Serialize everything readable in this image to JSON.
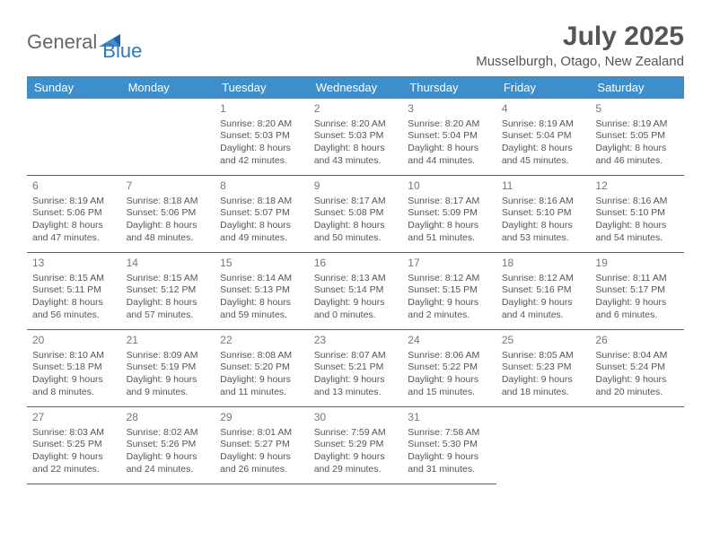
{
  "logo": {
    "word1": "General",
    "word2": "Blue"
  },
  "title": "July 2025",
  "location": "Musselburgh, Otago, New Zealand",
  "colors": {
    "header_bg": "#3f8ecc",
    "header_text": "#ffffff",
    "rule": "#2c6aa0",
    "text": "#555555",
    "logo_blue": "#2f78bf"
  },
  "dow": [
    "Sunday",
    "Monday",
    "Tuesday",
    "Wednesday",
    "Thursday",
    "Friday",
    "Saturday"
  ],
  "lead_blanks": 2,
  "trail_blanks": 2,
  "days": [
    {
      "n": 1,
      "sunrise": "8:20 AM",
      "sunset": "5:03 PM",
      "dl_h": 8,
      "dl_m": 42
    },
    {
      "n": 2,
      "sunrise": "8:20 AM",
      "sunset": "5:03 PM",
      "dl_h": 8,
      "dl_m": 43
    },
    {
      "n": 3,
      "sunrise": "8:20 AM",
      "sunset": "5:04 PM",
      "dl_h": 8,
      "dl_m": 44
    },
    {
      "n": 4,
      "sunrise": "8:19 AM",
      "sunset": "5:04 PM",
      "dl_h": 8,
      "dl_m": 45
    },
    {
      "n": 5,
      "sunrise": "8:19 AM",
      "sunset": "5:05 PM",
      "dl_h": 8,
      "dl_m": 46
    },
    {
      "n": 6,
      "sunrise": "8:19 AM",
      "sunset": "5:06 PM",
      "dl_h": 8,
      "dl_m": 47
    },
    {
      "n": 7,
      "sunrise": "8:18 AM",
      "sunset": "5:06 PM",
      "dl_h": 8,
      "dl_m": 48
    },
    {
      "n": 8,
      "sunrise": "8:18 AM",
      "sunset": "5:07 PM",
      "dl_h": 8,
      "dl_m": 49
    },
    {
      "n": 9,
      "sunrise": "8:17 AM",
      "sunset": "5:08 PM",
      "dl_h": 8,
      "dl_m": 50
    },
    {
      "n": 10,
      "sunrise": "8:17 AM",
      "sunset": "5:09 PM",
      "dl_h": 8,
      "dl_m": 51
    },
    {
      "n": 11,
      "sunrise": "8:16 AM",
      "sunset": "5:10 PM",
      "dl_h": 8,
      "dl_m": 53
    },
    {
      "n": 12,
      "sunrise": "8:16 AM",
      "sunset": "5:10 PM",
      "dl_h": 8,
      "dl_m": 54
    },
    {
      "n": 13,
      "sunrise": "8:15 AM",
      "sunset": "5:11 PM",
      "dl_h": 8,
      "dl_m": 56
    },
    {
      "n": 14,
      "sunrise": "8:15 AM",
      "sunset": "5:12 PM",
      "dl_h": 8,
      "dl_m": 57
    },
    {
      "n": 15,
      "sunrise": "8:14 AM",
      "sunset": "5:13 PM",
      "dl_h": 8,
      "dl_m": 59
    },
    {
      "n": 16,
      "sunrise": "8:13 AM",
      "sunset": "5:14 PM",
      "dl_h": 9,
      "dl_m": 0
    },
    {
      "n": 17,
      "sunrise": "8:12 AM",
      "sunset": "5:15 PM",
      "dl_h": 9,
      "dl_m": 2
    },
    {
      "n": 18,
      "sunrise": "8:12 AM",
      "sunset": "5:16 PM",
      "dl_h": 9,
      "dl_m": 4
    },
    {
      "n": 19,
      "sunrise": "8:11 AM",
      "sunset": "5:17 PM",
      "dl_h": 9,
      "dl_m": 6
    },
    {
      "n": 20,
      "sunrise": "8:10 AM",
      "sunset": "5:18 PM",
      "dl_h": 9,
      "dl_m": 8
    },
    {
      "n": 21,
      "sunrise": "8:09 AM",
      "sunset": "5:19 PM",
      "dl_h": 9,
      "dl_m": 9
    },
    {
      "n": 22,
      "sunrise": "8:08 AM",
      "sunset": "5:20 PM",
      "dl_h": 9,
      "dl_m": 11
    },
    {
      "n": 23,
      "sunrise": "8:07 AM",
      "sunset": "5:21 PM",
      "dl_h": 9,
      "dl_m": 13
    },
    {
      "n": 24,
      "sunrise": "8:06 AM",
      "sunset": "5:22 PM",
      "dl_h": 9,
      "dl_m": 15
    },
    {
      "n": 25,
      "sunrise": "8:05 AM",
      "sunset": "5:23 PM",
      "dl_h": 9,
      "dl_m": 18
    },
    {
      "n": 26,
      "sunrise": "8:04 AM",
      "sunset": "5:24 PM",
      "dl_h": 9,
      "dl_m": 20
    },
    {
      "n": 27,
      "sunrise": "8:03 AM",
      "sunset": "5:25 PM",
      "dl_h": 9,
      "dl_m": 22
    },
    {
      "n": 28,
      "sunrise": "8:02 AM",
      "sunset": "5:26 PM",
      "dl_h": 9,
      "dl_m": 24
    },
    {
      "n": 29,
      "sunrise": "8:01 AM",
      "sunset": "5:27 PM",
      "dl_h": 9,
      "dl_m": 26
    },
    {
      "n": 30,
      "sunrise": "7:59 AM",
      "sunset": "5:29 PM",
      "dl_h": 9,
      "dl_m": 29
    },
    {
      "n": 31,
      "sunrise": "7:58 AM",
      "sunset": "5:30 PM",
      "dl_h": 9,
      "dl_m": 31
    }
  ],
  "labels": {
    "sunrise": "Sunrise:",
    "sunset": "Sunset:",
    "daylight_prefix": "Daylight:",
    "hours_word": "hours",
    "and_word": "and",
    "minutes_word": "minutes."
  }
}
